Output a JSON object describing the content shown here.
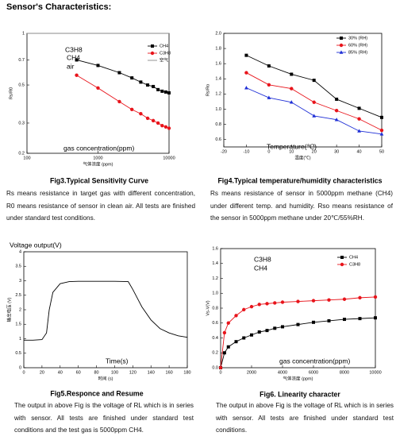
{
  "title": "Sensor's Characteristics:",
  "chart_data": [
    {
      "type": "line",
      "caption": "Fig3.Typical Sensitivity Curve",
      "description": "Rs means resistance in target gas with different concentration, R0 means resistance of sensor in clean air. All tests are finished under standard test conditions.",
      "xlabel": "气体浓度 (ppm)",
      "ylabel": "Rs/R0",
      "annotations": [
        "C3H8",
        "CH4",
        "air",
        "gas concentration(ppm)"
      ],
      "log_x": true,
      "log_y": true,
      "legend": "upper right",
      "xlim": [
        100,
        10000
      ],
      "ylim": [
        0.2,
        1
      ],
      "xticks": [
        100,
        1000,
        10000
      ],
      "yticks": [
        0.2,
        0.3,
        0.5,
        0.7,
        1
      ],
      "x": [
        100,
        500,
        1000,
        2000,
        3000,
        4000,
        5000,
        6000,
        7000,
        8000,
        9000,
        10000
      ],
      "series": [
        {
          "name": "CH4",
          "color": "#000000",
          "marker": "square",
          "values": [
            null,
            0.7,
            0.65,
            0.59,
            0.55,
            0.52,
            0.5,
            0.49,
            0.47,
            0.46,
            0.455,
            0.45
          ]
        },
        {
          "name": "C3H8",
          "color": "#e8141b",
          "marker": "circle",
          "values": [
            null,
            0.57,
            0.48,
            0.4,
            0.36,
            0.34,
            0.32,
            0.31,
            0.3,
            0.29,
            0.285,
            0.28
          ]
        },
        {
          "name": "空气",
          "color": "#888888",
          "marker": "none",
          "values": [
            1,
            1,
            1,
            1,
            1,
            1,
            1,
            1,
            1,
            1,
            1,
            1
          ]
        }
      ]
    },
    {
      "type": "line",
      "caption": "Fig4.Typical temperature/humidity characteristics",
      "description": "Rs means resistance of sensor in 5000ppm methane (CH4) under different temp. and humidity. Rso means resistance of the sensor in 5000ppm methane under 20℃/55%RH.",
      "xlabel": "温度(℃)",
      "ylabel": "Rs/Ro",
      "annotations": [
        "Temperature(℃)"
      ],
      "legend": "upper right",
      "xlim": [
        -20,
        50
      ],
      "ylim": [
        0.5,
        2
      ],
      "xticks": [
        -20,
        -10,
        0,
        10,
        20,
        30,
        40,
        50
      ],
      "yticks": [
        0.6,
        0.8,
        {
          "value": 1,
          "label": "1.0"
        },
        1.2,
        1.4,
        1.6,
        1.8,
        {
          "value": 2,
          "label": "2.0"
        }
      ],
      "x": [
        -10,
        0,
        10,
        20,
        30,
        40,
        50
      ],
      "series": [
        {
          "name": "30% (RH)",
          "color": "#000000",
          "marker": "square",
          "values": [
            1.71,
            1.57,
            1.46,
            1.38,
            1.13,
            1.01,
            0.89
          ]
        },
        {
          "name": "60% (RH)",
          "color": "#e8141b",
          "marker": "circle",
          "values": [
            1.48,
            1.32,
            1.27,
            1.09,
            0.98,
            0.87,
            0.72
          ]
        },
        {
          "name": "85% (RH)",
          "color": "#1f2fd6",
          "marker": "triangle",
          "values": [
            1.28,
            1.15,
            1.09,
            0.91,
            0.86,
            0.71,
            0.67
          ]
        }
      ]
    },
    {
      "type": "line",
      "caption": "Fig5.Responce and Resume",
      "description": "The output in above Fig is the voltage of RL which is in series with sensor. All tests are finished under standard test conditions and the test gas is 5000ppm CH4.",
      "xlabel": "时间 (s)",
      "ylabel": "输出电压 (V)",
      "annotations": [
        "Voltage output(V)",
        "Time(s)"
      ],
      "xlim": [
        0,
        180
      ],
      "ylim": [
        0,
        4
      ],
      "xticks": [
        0,
        20,
        40,
        60,
        80,
        100,
        120,
        140,
        160,
        180
      ],
      "yticks": [
        0,
        0.5,
        1,
        1.5,
        2,
        2.5,
        3,
        3.5,
        4
      ],
      "x": [
        0,
        10,
        20,
        25,
        28,
        32,
        40,
        50,
        60,
        80,
        100,
        115,
        120,
        130,
        140,
        150,
        160,
        170,
        180
      ],
      "series": [
        {
          "color": "#000000",
          "marker": "none",
          "values": [
            0.95,
            0.95,
            0.97,
            1.2,
            2.0,
            2.6,
            2.9,
            2.97,
            2.98,
            2.98,
            2.98,
            2.97,
            2.7,
            2.1,
            1.65,
            1.35,
            1.2,
            1.1,
            1.05
          ]
        }
      ]
    },
    {
      "type": "line",
      "caption": "Fig6. Linearity character",
      "description": "The output in above Fig is the voltage of RL which is in series with sensor. All tests are finished under standard test conditions.",
      "xlabel": "气体浓度 (ppm)",
      "ylabel": "Vs-V(V)",
      "annotations": [
        "C3H8",
        "CH4",
        "gas concentration(ppm)"
      ],
      "legend": "upper right",
      "xlim": [
        0,
        10000
      ],
      "ylim": [
        0,
        1.6
      ],
      "xticks": [
        0,
        2000,
        4000,
        6000,
        8000,
        10000
      ],
      "yticks": [
        {
          "value": 0,
          "label": "0.0"
        },
        0.2,
        0.4,
        0.6,
        0.8,
        {
          "value": 1,
          "label": "1.0"
        },
        1.2,
        1.4,
        1.6
      ],
      "x": [
        0,
        250,
        500,
        1000,
        1500,
        2000,
        2500,
        3000,
        3500,
        4000,
        5000,
        6000,
        7000,
        8000,
        9000,
        10000
      ],
      "series": [
        {
          "name": "CH4",
          "color": "#000000",
          "marker": "square",
          "values": [
            0,
            0.2,
            0.28,
            0.35,
            0.4,
            0.44,
            0.48,
            0.5,
            0.53,
            0.55,
            0.58,
            0.61,
            0.63,
            0.65,
            0.66,
            0.67
          ]
        },
        {
          "name": "C3H8",
          "color": "#e8141b",
          "marker": "circle",
          "values": [
            0,
            0.47,
            0.6,
            0.7,
            0.78,
            0.82,
            0.85,
            0.86,
            0.87,
            0.88,
            0.89,
            0.9,
            0.91,
            0.92,
            0.94,
            0.95
          ]
        }
      ]
    }
  ]
}
